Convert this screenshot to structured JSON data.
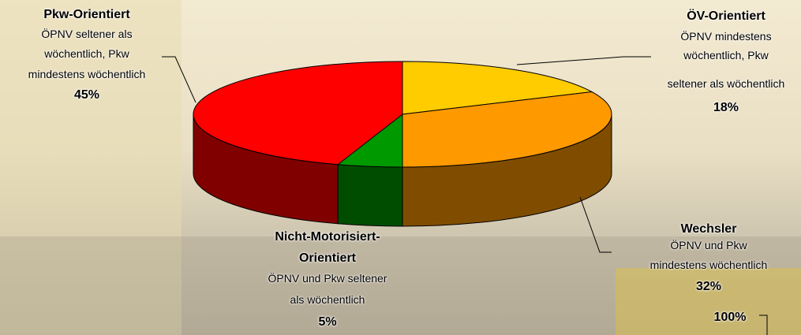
{
  "chart_data": {
    "type": "pie3d",
    "categories": [
      "ÖV-Orientiert",
      "Wechsler",
      "Nicht-Motorisiert-Orientiert",
      "Pkw-Orientiert"
    ],
    "descriptions": [
      [
        "ÖPNV mindestens",
        "wöchentlich, Pkw",
        "seltener als wöchentlich"
      ],
      [
        "ÖPNV und Pkw",
        "mindestens wöchentlich"
      ],
      [
        "ÖPNV und Pkw seltener",
        "als wöchentlich"
      ],
      [
        "ÖPNV seltener als",
        "wöchentlich, Pkw",
        "mindestens wöchentlich"
      ]
    ],
    "values": [
      18,
      32,
      5,
      45
    ],
    "value_labels": [
      "18%",
      "32%",
      "5%",
      "45%"
    ],
    "colors": [
      "#ffcc00",
      "#ff9900",
      "#009900",
      "#ff0000"
    ],
    "annotations": [
      "100%"
    ]
  }
}
